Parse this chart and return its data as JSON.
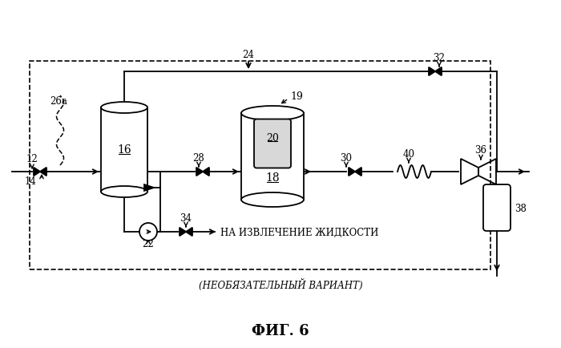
{
  "title": "ФИГ. 6",
  "subtitle": "(НЕОБЯЗАТЕЛЬНЫЙ ВАРИАНТ)",
  "liquid_label": "НА ИЗВЛЕЧЕНИЕ ЖИДКОСТИ",
  "bg_color": "#ffffff",
  "line_color": "#000000",
  "label_16": "16",
  "label_18": "18",
  "label_19": "19",
  "label_20": "20",
  "label_12": "12",
  "label_14": "14",
  "label_22": "22",
  "label_24": "24",
  "label_26a": "26a",
  "label_28": "28",
  "label_30": "30",
  "label_32": "32",
  "label_34": "34",
  "label_36": "36",
  "label_38": "38",
  "label_40": "40"
}
